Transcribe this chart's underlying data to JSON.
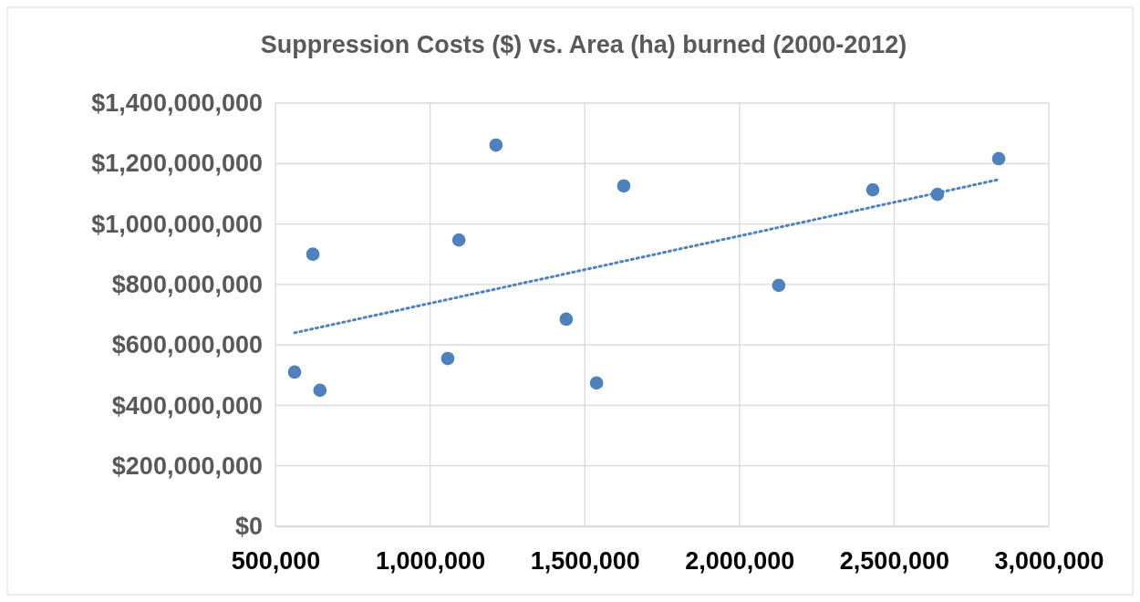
{
  "chart_data": {
    "type": "scatter",
    "title": "Suppression Costs ($) vs. Area (ha) burned (2000-2012)",
    "x": [
      562000,
      621000,
      644000,
      1057000,
      1093000,
      1213000,
      1440000,
      1538000,
      1626000,
      2127000,
      2431000,
      2640000,
      2838000
    ],
    "series": [
      {
        "color": "#4f81bd",
        "marker": "circle",
        "values": [
          510000000,
          900000000,
          450000000,
          555000000,
          947000000,
          1261000000,
          685000000,
          474000000,
          1126000000,
          797000000,
          1113000000,
          1098000000,
          1216000000
        ]
      },
      {
        "type": "line",
        "color": "#4f81bd",
        "line_style": "dotted",
        "marker": "none",
        "x": [
          562000,
          2838000
        ],
        "values": [
          640000000,
          1147000000
        ]
      }
    ],
    "xlim": [
      500000,
      3000000
    ],
    "xticks": [
      {
        "value": 500000,
        "label": "500,000"
      },
      {
        "value": 1000000,
        "label": "1,000,000"
      },
      {
        "value": 1500000,
        "label": "1,500,000"
      },
      {
        "value": 2000000,
        "label": "2,000,000"
      },
      {
        "value": 2500000,
        "label": "2,500,000"
      },
      {
        "value": 3000000,
        "label": "3,000,000"
      }
    ],
    "ylim": [
      0,
      1400000000
    ],
    "yticks": [
      {
        "value": 0,
        "label": "$0"
      },
      {
        "value": 200000000,
        "label": "$200,000,000"
      },
      {
        "value": 400000000,
        "label": "$400,000,000"
      },
      {
        "value": 600000000,
        "label": "$600,000,000"
      },
      {
        "value": 800000000,
        "label": "$800,000,000"
      },
      {
        "value": 1000000000,
        "label": "$1,000,000,000"
      },
      {
        "value": 1200000000,
        "label": "$1,200,000,000"
      },
      {
        "value": 1400000000,
        "label": "$1,400,000,000"
      }
    ],
    "grid": true
  }
}
